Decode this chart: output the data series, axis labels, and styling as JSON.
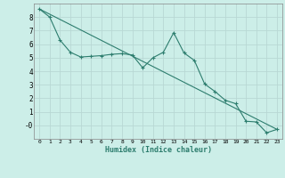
{
  "xlabel": "Humidex (Indice chaleur)",
  "bg_color": "#cceee8",
  "line_color": "#2d7d6e",
  "grid_color": "#b8d8d4",
  "xlim": [
    -0.5,
    23.5
  ],
  "ylim": [
    -1.0,
    9.0
  ],
  "x_ticks": [
    0,
    1,
    2,
    3,
    4,
    5,
    6,
    7,
    8,
    9,
    10,
    11,
    12,
    13,
    14,
    15,
    16,
    17,
    18,
    19,
    20,
    21,
    22,
    23
  ],
  "y_ticks": [
    0,
    1,
    2,
    3,
    4,
    5,
    6,
    7,
    8
  ],
  "y_tick_labels": [
    "-0",
    "1",
    "2",
    "3",
    "4",
    "5",
    "6",
    "7",
    "8"
  ],
  "line1_x": [
    0,
    1,
    2,
    3,
    4,
    5,
    6,
    7,
    8,
    9,
    10,
    11,
    12,
    13,
    14,
    15,
    16,
    17,
    18,
    19,
    20,
    21,
    22,
    23
  ],
  "line1_y": [
    8.6,
    8.0,
    6.3,
    5.4,
    5.05,
    5.1,
    5.15,
    5.25,
    5.3,
    5.2,
    4.25,
    5.0,
    5.4,
    6.85,
    5.35,
    4.8,
    3.05,
    2.5,
    1.85,
    1.6,
    0.3,
    0.25,
    -0.55,
    -0.3
  ],
  "line2_x": [
    0,
    23
  ],
  "line2_y": [
    8.6,
    -0.3
  ],
  "marker": "+"
}
